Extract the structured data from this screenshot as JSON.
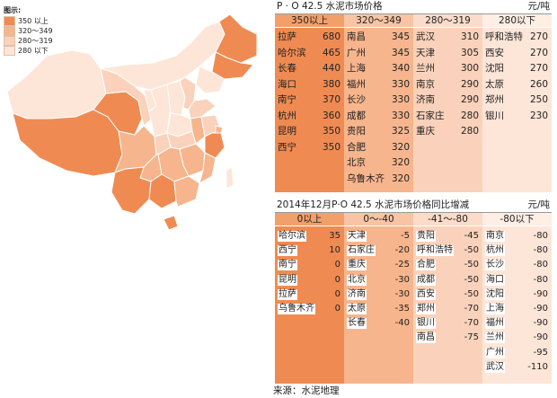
{
  "colors": {
    "350以上": "#ef8b52",
    "320～349": "#f6b58d",
    "280～319": "#fad2bb",
    "280以下": "#fde6d8"
  },
  "legend": {
    "title": "图示:",
    "items": [
      "350 以上",
      "320～349",
      "280～319",
      "280 以下"
    ]
  },
  "chart_data": [
    {
      "type": "table",
      "title": "P · O 42.5 水泥市场价格",
      "unit": "元/吨",
      "columns": [
        {
          "header": "350以上",
          "rows": [
            [
              "拉萨",
              "680"
            ],
            [
              "哈尔滨",
              "465"
            ],
            [
              "长春",
              "440"
            ],
            [
              "海口",
              "380"
            ],
            [
              "南宁",
              "370"
            ],
            [
              "杭州",
              "360"
            ],
            [
              "昆明",
              "350"
            ],
            [
              "西宁",
              "350"
            ]
          ]
        },
        {
          "header": "320～349",
          "rows": [
            [
              "南昌",
              "345"
            ],
            [
              "广州",
              "345"
            ],
            [
              "上海",
              "340"
            ],
            [
              "福州",
              "330"
            ],
            [
              "长沙",
              "330"
            ],
            [
              "成都",
              "330"
            ],
            [
              "贵阳",
              "325"
            ],
            [
              "合肥",
              "320"
            ],
            [
              "北京",
              "320"
            ],
            [
              "乌鲁木齐",
              "320"
            ]
          ]
        },
        {
          "header": "280～319",
          "rows": [
            [
              "武汉",
              "310"
            ],
            [
              "天津",
              "305"
            ],
            [
              "兰州",
              "300"
            ],
            [
              "南京",
              "290"
            ],
            [
              "济南",
              "290"
            ],
            [
              "石家庄",
              "280"
            ],
            [
              "重庆",
              "280"
            ]
          ]
        },
        {
          "header": "280以下",
          "rows": [
            [
              "呼和浩特",
              "270"
            ],
            [
              "西安",
              "270"
            ],
            [
              "沈阳",
              "270"
            ],
            [
              "太原",
              "260"
            ],
            [
              "郑州",
              "250"
            ],
            [
              "银川",
              "230"
            ]
          ]
        }
      ]
    },
    {
      "type": "table",
      "title": "2014年12月P·O 42.5 水泥市场价格同比增减",
      "unit": "元/吨",
      "columns": [
        {
          "header": "0以上",
          "rows": [
            [
              "哈尔滨",
              "35"
            ],
            [
              "西宁",
              "10"
            ],
            [
              "南宁",
              "0"
            ],
            [
              "昆明",
              "0"
            ],
            [
              "拉萨",
              "0"
            ],
            [
              "乌鲁木齐",
              "0"
            ]
          ]
        },
        {
          "header": "0～-40",
          "rows": [
            [
              "天津",
              "-5"
            ],
            [
              "石家庄",
              "-20"
            ],
            [
              "重庆",
              "-25"
            ],
            [
              "北京",
              "-30"
            ],
            [
              "济南",
              "-30"
            ],
            [
              "太原",
              "-35"
            ],
            [
              "长春",
              "-40"
            ]
          ]
        },
        {
          "header": "-41～-80",
          "rows": [
            [
              "贵阳",
              "-45"
            ],
            [
              "呼和浩特",
              "-50"
            ],
            [
              "合肥",
              "-50"
            ],
            [
              "成都",
              "-50"
            ],
            [
              "西安",
              "-50"
            ],
            [
              "郑州",
              "-70"
            ],
            [
              "银川",
              "-70"
            ],
            [
              "南昌",
              "-75"
            ]
          ]
        },
        {
          "header": "-80以下",
          "rows": [
            [
              "南京",
              "-80"
            ],
            [
              "杭州",
              "-80"
            ],
            [
              "长沙",
              "-80"
            ],
            [
              "海口",
              "-80"
            ],
            [
              "沈阳",
              "-90"
            ],
            [
              "上海",
              "-90"
            ],
            [
              "福州",
              "-90"
            ],
            [
              "兰州",
              "-90"
            ],
            [
              "广州",
              "-95"
            ],
            [
              "武汉",
              "-110"
            ]
          ]
        }
      ]
    }
  ],
  "source": "来源：水泥地理"
}
